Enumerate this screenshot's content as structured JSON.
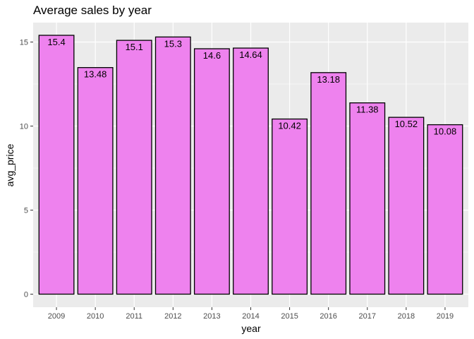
{
  "chart_data": {
    "type": "bar",
    "title": "Average sales by year",
    "xlabel": "year",
    "ylabel": "avg_price",
    "categories": [
      "2009",
      "2010",
      "2011",
      "2012",
      "2013",
      "2014",
      "2015",
      "2016",
      "2017",
      "2018",
      "2019"
    ],
    "values": [
      15.4,
      13.48,
      15.1,
      15.3,
      14.6,
      14.64,
      10.42,
      13.18,
      11.38,
      10.52,
      10.08
    ],
    "data_labels": [
      "15.4",
      "13.48",
      "15.1",
      "15.3",
      "14.6",
      "14.64",
      "10.42",
      "13.18",
      "11.38",
      "10.52",
      "10.08"
    ],
    "ylim": [
      0,
      16.2
    ],
    "yticks": [
      0,
      5,
      10,
      15
    ],
    "grid": true,
    "bar_fill": "#EE82EE",
    "bar_outline": "#000000",
    "panel_background": "#EBEBEB",
    "gridline_color": "#FFFFFF"
  }
}
